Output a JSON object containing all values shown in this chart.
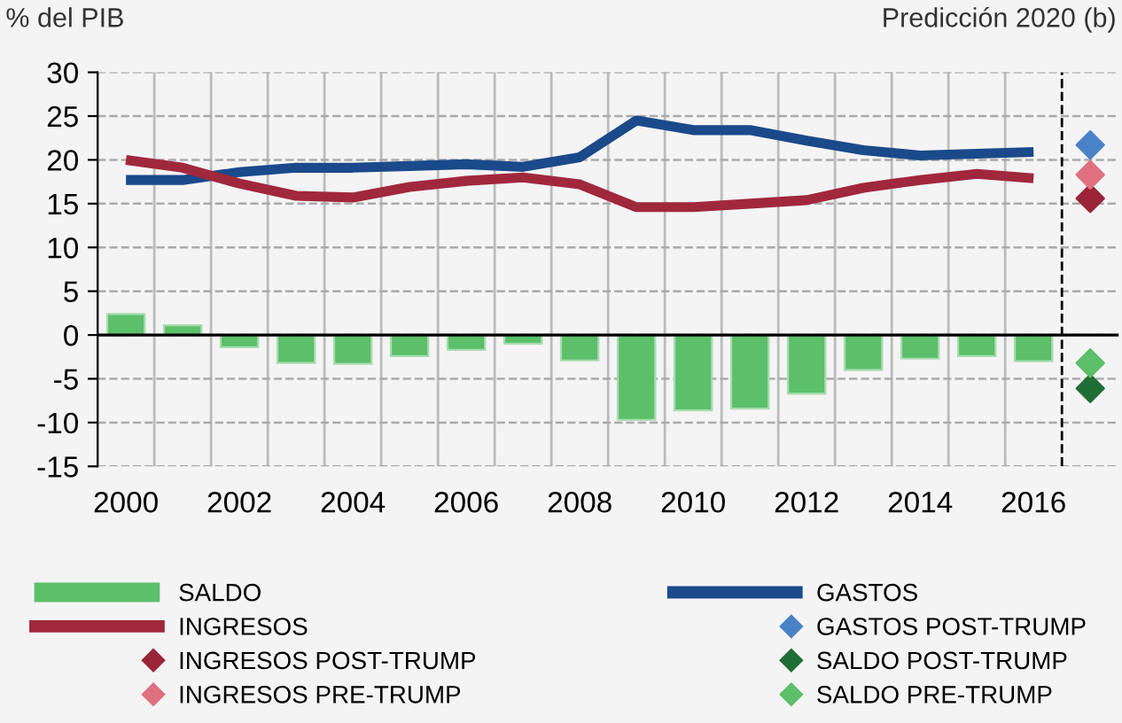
{
  "chart_data": {
    "type": "bar",
    "ylabel": "% del PIB",
    "annotations": [
      "Predicción 2020 (b)"
    ],
    "xlim": [
      1999.5,
      2017.5
    ],
    "ylim": [
      -15,
      30
    ],
    "xticks": [
      2000,
      2002,
      2004,
      2006,
      2008,
      2010,
      2012,
      2014,
      2016,
      {
        "value": 1999.5,
        "label": null
      },
      {
        "value": 2000.5,
        "label": null
      },
      {
        "value": 2001.5,
        "label": null
      },
      {
        "value": 2002.5,
        "label": null
      },
      {
        "value": 2003.5,
        "label": null
      },
      {
        "value": 2004.5,
        "label": null
      },
      {
        "value": 2005.5,
        "label": null
      },
      {
        "value": 2006.5,
        "label": null
      },
      {
        "value": 2007.5,
        "label": null
      },
      {
        "value": 2008.5,
        "label": null
      },
      {
        "value": 2009.5,
        "label": null
      },
      {
        "value": 2010.5,
        "label": null
      },
      {
        "value": 2011.5,
        "label": null
      },
      {
        "value": 2012.5,
        "label": null
      },
      {
        "value": 2013.5,
        "label": null
      },
      {
        "value": 2014.5,
        "label": null
      },
      {
        "value": 2015.5,
        "label": null
      }
    ],
    "yticks": [
      -15,
      -10,
      -5,
      0,
      5,
      10,
      15,
      20,
      25,
      30
    ],
    "grid": true,
    "legend": "bottom",
    "ref_lines": [
      {
        "axis": "x",
        "value": 2016.5,
        "color": "#000000",
        "line_style": "dashed"
      }
    ],
    "series": [
      {
        "name": "SALDO",
        "color": "#5cbf6a",
        "x": [
          2000,
          2001,
          2002,
          2003,
          2004,
          2005,
          2006,
          2007,
          2008,
          2009,
          2010,
          2011,
          2012,
          2013,
          2014,
          2015,
          2016
        ],
        "values": [
          2.4,
          1.1,
          -1.4,
          -3.2,
          -3.3,
          -2.4,
          -1.7,
          -1.0,
          -2.9,
          -9.7,
          -8.6,
          -8.4,
          -6.7,
          -4.0,
          -2.7,
          -2.4,
          -3.0
        ]
      },
      {
        "name": "GASTOS",
        "type": "line",
        "color": "#1a4a8a",
        "x": [
          2000,
          2001,
          2002,
          2003,
          2004,
          2005,
          2006,
          2007,
          2008,
          2009,
          2010,
          2011,
          2012,
          2013,
          2014,
          2015,
          2016
        ],
        "values": [
          17.7,
          17.7,
          18.6,
          19.1,
          19.1,
          19.3,
          19.5,
          19.2,
          20.3,
          24.5,
          23.4,
          23.4,
          22.2,
          21.1,
          20.5,
          20.7,
          20.9
        ]
      },
      {
        "name": "INGRESOS",
        "type": "line",
        "color": "#a0283c",
        "x": [
          2000,
          2001,
          2002,
          2003,
          2004,
          2005,
          2006,
          2007,
          2008,
          2009,
          2010,
          2011,
          2012,
          2013,
          2014,
          2015,
          2016
        ],
        "values": [
          20.0,
          19.1,
          17.3,
          15.9,
          15.7,
          16.9,
          17.6,
          18.0,
          17.2,
          14.6,
          14.6,
          15.0,
          15.4,
          16.8,
          17.7,
          18.4,
          17.9
        ]
      },
      {
        "name": "GASTOS POST-TRUMP",
        "type": "scatter",
        "marker": "diamond",
        "color": "#4a82c8",
        "x": [
          2017
        ],
        "values": [
          21.7
        ]
      },
      {
        "name": "INGRESOS POST-TRUMP",
        "type": "scatter",
        "marker": "diamond",
        "color": "#9b2438",
        "x": [
          2017
        ],
        "values": [
          15.6
        ]
      },
      {
        "name": "SALDO POST-TRUMP",
        "type": "scatter",
        "marker": "diamond",
        "color": "#1f6e35",
        "x": [
          2017
        ],
        "values": [
          -6.1
        ]
      },
      {
        "name": "INGRESOS PRE-TRUMP",
        "type": "scatter",
        "marker": "diamond",
        "color": "#e07080",
        "x": [
          2017
        ],
        "values": [
          18.3
        ]
      },
      {
        "name": "SALDO PRE-TRUMP",
        "type": "scatter",
        "marker": "diamond",
        "color": "#5cbf6a",
        "x": [
          2017
        ],
        "values": [
          -3.2
        ]
      }
    ]
  }
}
